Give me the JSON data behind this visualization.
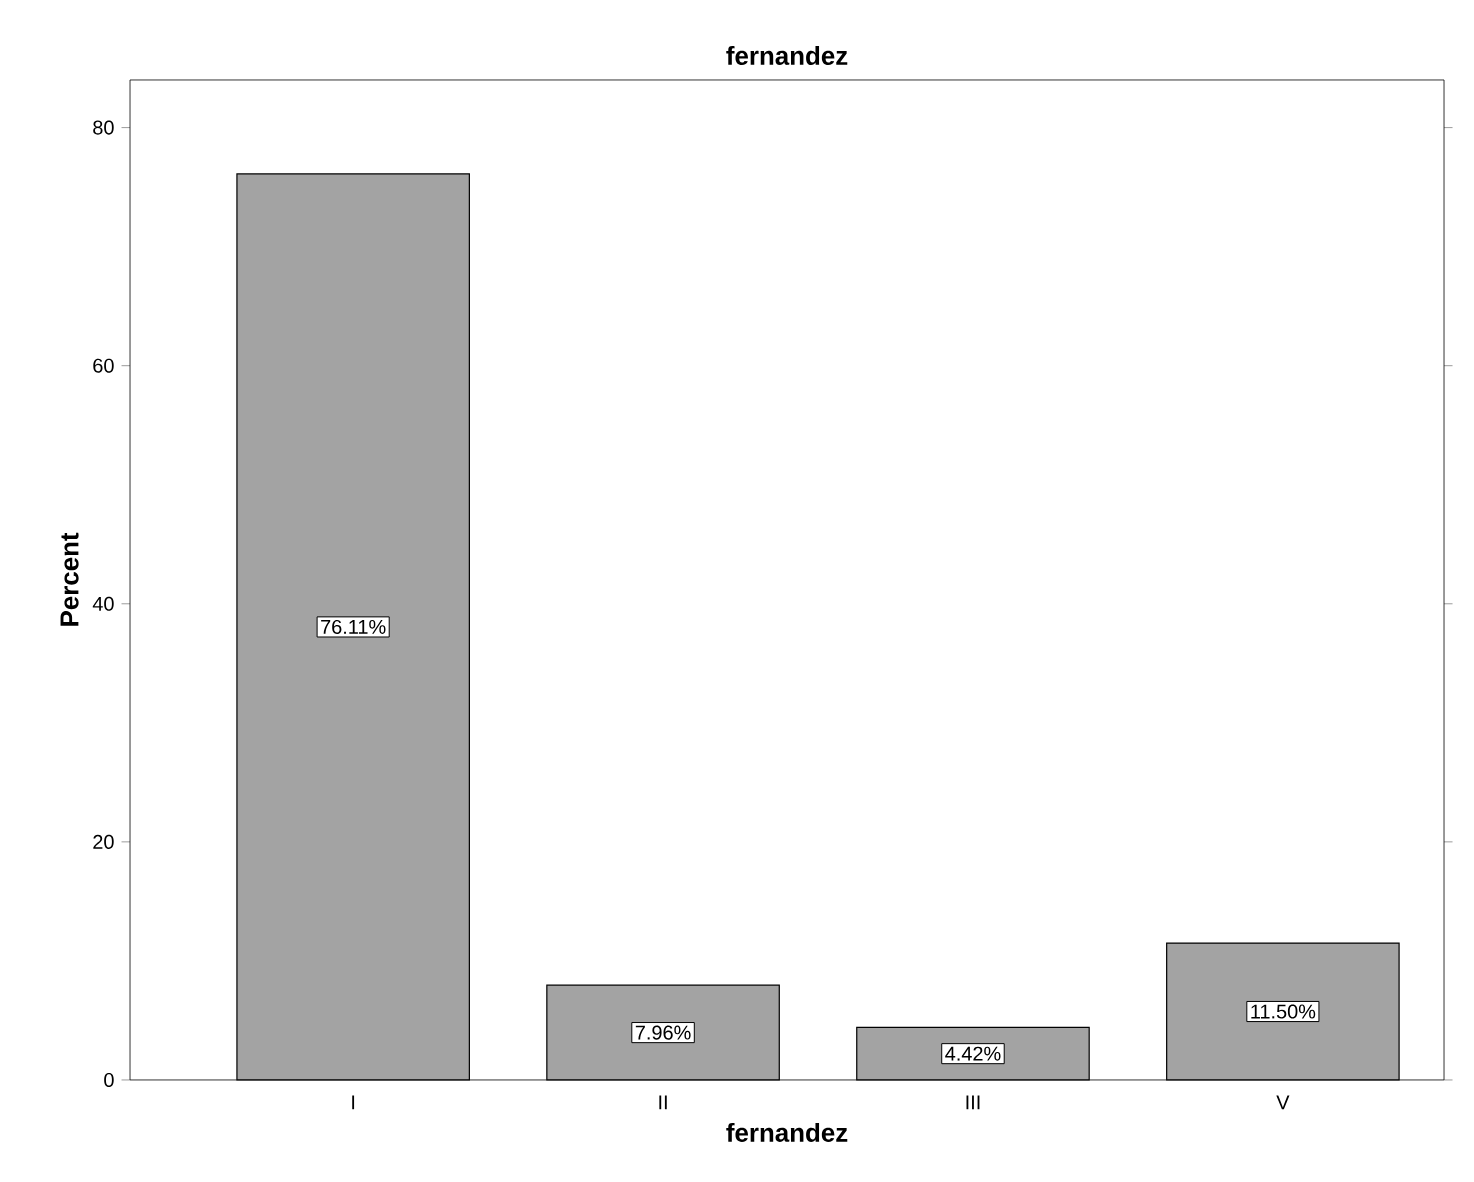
{
  "chart_data": {
    "type": "bar",
    "title": "fernandez",
    "xlabel": "fernandez",
    "ylabel": "Percent",
    "categories": [
      "I",
      "II",
      "III",
      "V"
    ],
    "values": [
      76.11,
      7.96,
      4.42,
      11.5
    ],
    "value_labels": [
      "76.11%",
      "7.96%",
      "4.42%",
      "11.50%"
    ],
    "color": "#a3a3a3",
    "ylim": [
      0,
      84
    ],
    "yticks": [
      0,
      20,
      40,
      60,
      80
    ]
  }
}
